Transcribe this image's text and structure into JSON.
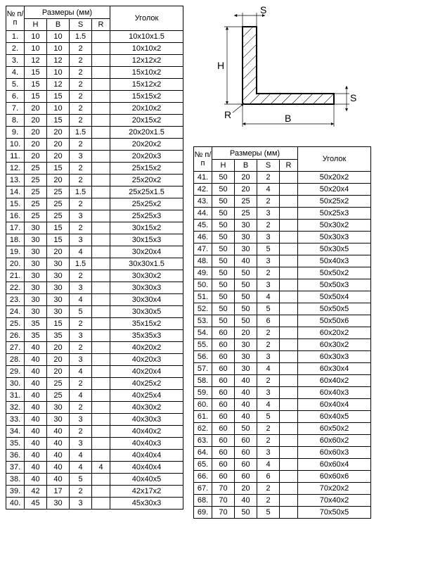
{
  "header": {
    "num": "№ п/п",
    "dims": "Размеры (мм)",
    "h": "H",
    "b": "B",
    "s": "S",
    "r": "R",
    "corner": "Уголок"
  },
  "diagram": {
    "labels": {
      "h": "H",
      "b": "B",
      "s_top": "S",
      "s_right": "S",
      "r": "R"
    }
  },
  "table1": [
    {
      "n": "1.",
      "h": "10",
      "b": "10",
      "s": "1.5",
      "r": "",
      "u": "10х10х1.5"
    },
    {
      "n": "2.",
      "h": "10",
      "b": "10",
      "s": "2",
      "r": "",
      "u": "10х10х2"
    },
    {
      "n": "3.",
      "h": "12",
      "b": "12",
      "s": "2",
      "r": "",
      "u": "12х12х2"
    },
    {
      "n": "4.",
      "h": "15",
      "b": "10",
      "s": "2",
      "r": "",
      "u": "15х10х2"
    },
    {
      "n": "5.",
      "h": "15",
      "b": "12",
      "s": "2",
      "r": "",
      "u": "15х12х2"
    },
    {
      "n": "6.",
      "h": "15",
      "b": "15",
      "s": "2",
      "r": "",
      "u": "15х15х2"
    },
    {
      "n": "7.",
      "h": "20",
      "b": "10",
      "s": "2",
      "r": "",
      "u": "20х10х2"
    },
    {
      "n": "8.",
      "h": "20",
      "b": "15",
      "s": "2",
      "r": "",
      "u": "20х15х2"
    },
    {
      "n": "9.",
      "h": "20",
      "b": "20",
      "s": "1.5",
      "r": "",
      "u": "20х20х1.5"
    },
    {
      "n": "10.",
      "h": "20",
      "b": "20",
      "s": "2",
      "r": "",
      "u": "20х20х2"
    },
    {
      "n": "11.",
      "h": "20",
      "b": "20",
      "s": "3",
      "r": "",
      "u": "20х20х3"
    },
    {
      "n": "12.",
      "h": "25",
      "b": "15",
      "s": "2",
      "r": "",
      "u": "25х15х2"
    },
    {
      "n": "13.",
      "h": "25",
      "b": "20",
      "s": "2",
      "r": "",
      "u": "25х20х2"
    },
    {
      "n": "14.",
      "h": "25",
      "b": "25",
      "s": "1.5",
      "r": "",
      "u": "25х25х1.5"
    },
    {
      "n": "15.",
      "h": "25",
      "b": "25",
      "s": "2",
      "r": "",
      "u": "25х25х2"
    },
    {
      "n": "16.",
      "h": "25",
      "b": "25",
      "s": "3",
      "r": "",
      "u": "25х25х3"
    },
    {
      "n": "17.",
      "h": "30",
      "b": "15",
      "s": "2",
      "r": "",
      "u": "30х15х2"
    },
    {
      "n": "18.",
      "h": "30",
      "b": "15",
      "s": "3",
      "r": "",
      "u": "30х15х3"
    },
    {
      "n": "19.",
      "h": "30",
      "b": "20",
      "s": "4",
      "r": "",
      "u": "30х20х4"
    },
    {
      "n": "20.",
      "h": "30",
      "b": "30",
      "s": "1.5",
      "r": "",
      "u": "30х30х1.5"
    },
    {
      "n": "21.",
      "h": "30",
      "b": "30",
      "s": "2",
      "r": "",
      "u": "30х30х2"
    },
    {
      "n": "22.",
      "h": "30",
      "b": "30",
      "s": "3",
      "r": "",
      "u": "30х30х3"
    },
    {
      "n": "23.",
      "h": "30",
      "b": "30",
      "s": "4",
      "r": "",
      "u": "30х30х4"
    },
    {
      "n": "24.",
      "h": "30",
      "b": "30",
      "s": "5",
      "r": "",
      "u": "30х30х5"
    },
    {
      "n": "25.",
      "h": "35",
      "b": "15",
      "s": "2",
      "r": "",
      "u": "35х15х2"
    },
    {
      "n": "26.",
      "h": "35",
      "b": "35",
      "s": "3",
      "r": "",
      "u": "35х35х3"
    },
    {
      "n": "27.",
      "h": "40",
      "b": "20",
      "s": "2",
      "r": "",
      "u": "40х20х2"
    },
    {
      "n": "28.",
      "h": "40",
      "b": "20",
      "s": "3",
      "r": "",
      "u": "40х20х3"
    },
    {
      "n": "29.",
      "h": "40",
      "b": "20",
      "s": "4",
      "r": "",
      "u": "40х20х4"
    },
    {
      "n": "30.",
      "h": "40",
      "b": "25",
      "s": "2",
      "r": "",
      "u": "40х25х2"
    },
    {
      "n": "31.",
      "h": "40",
      "b": "25",
      "s": "4",
      "r": "",
      "u": "40х25х4"
    },
    {
      "n": "32.",
      "h": "40",
      "b": "30",
      "s": "2",
      "r": "",
      "u": "40х30х2"
    },
    {
      "n": "33.",
      "h": "40",
      "b": "30",
      "s": "3",
      "r": "",
      "u": "40х30х3"
    },
    {
      "n": "34.",
      "h": "40",
      "b": "40",
      "s": "2",
      "r": "",
      "u": "40х40х2"
    },
    {
      "n": "35.",
      "h": "40",
      "b": "40",
      "s": "3",
      "r": "",
      "u": "40х40х3"
    },
    {
      "n": "36.",
      "h": "40",
      "b": "40",
      "s": "4",
      "r": "",
      "u": "40х40х4"
    },
    {
      "n": "37.",
      "h": "40",
      "b": "40",
      "s": "4",
      "r": "4",
      "u": "40х40х4"
    },
    {
      "n": "38.",
      "h": "40",
      "b": "40",
      "s": "5",
      "r": "",
      "u": "40х40х5"
    },
    {
      "n": "39.",
      "h": "42",
      "b": "17",
      "s": "2",
      "r": "",
      "u": "42х17х2"
    },
    {
      "n": "40.",
      "h": "45",
      "b": "30",
      "s": "3",
      "r": "",
      "u": "45х30х3"
    }
  ],
  "table2": [
    {
      "n": "41.",
      "h": "50",
      "b": "20",
      "s": "2",
      "r": "",
      "u": "50х20х2"
    },
    {
      "n": "42.",
      "h": "50",
      "b": "20",
      "s": "4",
      "r": "",
      "u": "50х20х4"
    },
    {
      "n": "43.",
      "h": "50",
      "b": "25",
      "s": "2",
      "r": "",
      "u": "50х25х2"
    },
    {
      "n": "44.",
      "h": "50",
      "b": "25",
      "s": "3",
      "r": "",
      "u": "50х25х3"
    },
    {
      "n": "45.",
      "h": "50",
      "b": "30",
      "s": "2",
      "r": "",
      "u": "50х30х2"
    },
    {
      "n": "46.",
      "h": "50",
      "b": "30",
      "s": "3",
      "r": "",
      "u": "50х30х3"
    },
    {
      "n": "47.",
      "h": "50",
      "b": "30",
      "s": "5",
      "r": "",
      "u": "50х30х5"
    },
    {
      "n": "48.",
      "h": "50",
      "b": "40",
      "s": "3",
      "r": "",
      "u": "50х40х3"
    },
    {
      "n": "49.",
      "h": "50",
      "b": "50",
      "s": "2",
      "r": "",
      "u": "50х50х2"
    },
    {
      "n": "50.",
      "h": "50",
      "b": "50",
      "s": "3",
      "r": "",
      "u": "50х50х3"
    },
    {
      "n": "51.",
      "h": "50",
      "b": "50",
      "s": "4",
      "r": "",
      "u": "50х50х4"
    },
    {
      "n": "52.",
      "h": "50",
      "b": "50",
      "s": "5",
      "r": "",
      "u": "50х50х5"
    },
    {
      "n": "53.",
      "h": "50",
      "b": "50",
      "s": "6",
      "r": "",
      "u": "50х50х6"
    },
    {
      "n": "54.",
      "h": "60",
      "b": "20",
      "s": "2",
      "r": "",
      "u": "60х20х2"
    },
    {
      "n": "55.",
      "h": "60",
      "b": "30",
      "s": "2",
      "r": "",
      "u": "60х30х2"
    },
    {
      "n": "56.",
      "h": "60",
      "b": "30",
      "s": "3",
      "r": "",
      "u": "60х30х3"
    },
    {
      "n": "57.",
      "h": "60",
      "b": "30",
      "s": "4",
      "r": "",
      "u": "60х30х4"
    },
    {
      "n": "58.",
      "h": "60",
      "b": "40",
      "s": "2",
      "r": "",
      "u": "60х40х2"
    },
    {
      "n": "59.",
      "h": "60",
      "b": "40",
      "s": "3",
      "r": "",
      "u": "60х40х3"
    },
    {
      "n": "60.",
      "h": "60",
      "b": "40",
      "s": "4",
      "r": "",
      "u": "60х40х4"
    },
    {
      "n": "61.",
      "h": "60",
      "b": "40",
      "s": "5",
      "r": "",
      "u": "60х40х5"
    },
    {
      "n": "62.",
      "h": "60",
      "b": "50",
      "s": "2",
      "r": "",
      "u": "60х50х2"
    },
    {
      "n": "63.",
      "h": "60",
      "b": "60",
      "s": "2",
      "r": "",
      "u": "60х60х2"
    },
    {
      "n": "64.",
      "h": "60",
      "b": "60",
      "s": "3",
      "r": "",
      "u": "60х60х3"
    },
    {
      "n": "65.",
      "h": "60",
      "b": "60",
      "s": "4",
      "r": "",
      "u": "60х60х4"
    },
    {
      "n": "66.",
      "h": "60",
      "b": "60",
      "s": "6",
      "r": "",
      "u": "60х60х6"
    },
    {
      "n": "67.",
      "h": "70",
      "b": "20",
      "s": "2",
      "r": "",
      "u": "70х20х2"
    },
    {
      "n": "68.",
      "h": "70",
      "b": "40",
      "s": "2",
      "r": "",
      "u": "70х40х2"
    },
    {
      "n": "69.",
      "h": "70",
      "b": "50",
      "s": "5",
      "r": "",
      "u": "70х50х5"
    }
  ]
}
